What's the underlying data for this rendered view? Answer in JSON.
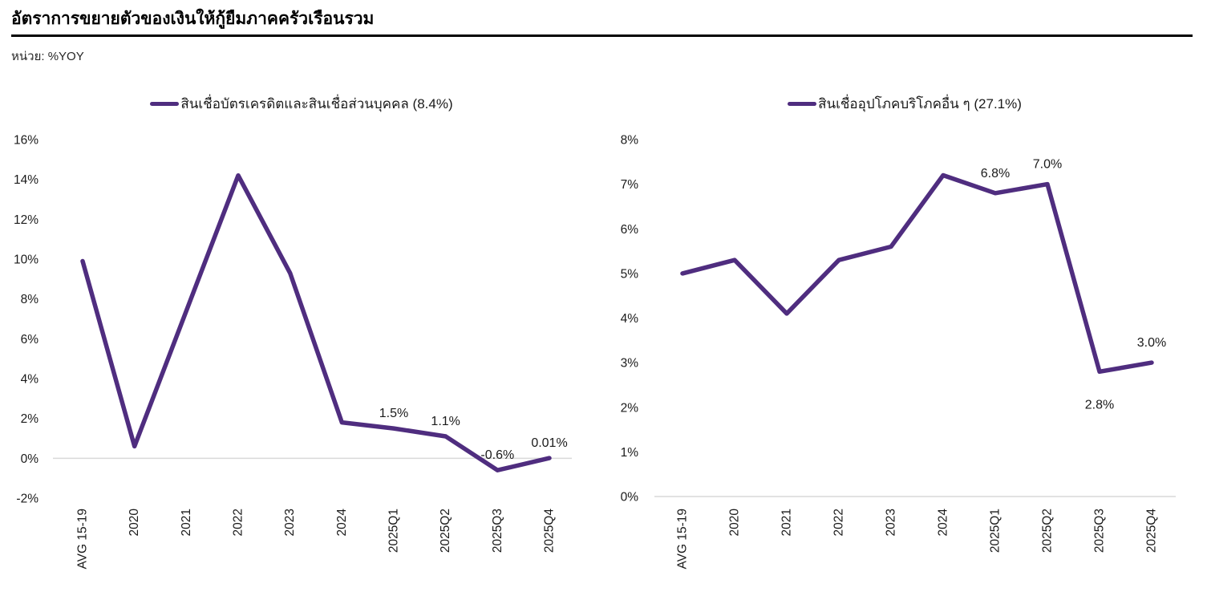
{
  "page": {
    "title": "อัตราการขยายตัวของเงินให้กู้ยืมภาคครัวเรือนรวม",
    "unit_label": "หน่วย: %YOY"
  },
  "colors": {
    "line": "#4F2D7F",
    "zero_axis": "#D9D9D9",
    "divider": "#000000",
    "text": "#1a1a1a"
  },
  "chart_data": [
    {
      "type": "line",
      "legend": "สินเชื่อบัตรเครดิตและสินเชื่อส่วนบุคคล (8.4%)",
      "categories": [
        "AVG 15-19",
        "2020",
        "2021",
        "2022",
        "2023",
        "2024",
        "2025Q1",
        "2025Q2",
        "2025Q3",
        "2025Q4"
      ],
      "values": [
        9.9,
        0.6,
        7.4,
        14.2,
        9.3,
        1.8,
        1.5,
        1.1,
        -0.6,
        0.01
      ],
      "point_labels": [
        {
          "index": 6,
          "text": "1.5%"
        },
        {
          "index": 7,
          "text": "1.1%"
        },
        {
          "index": 8,
          "text": "-0.6%"
        },
        {
          "index": 9,
          "text": "0.01%"
        }
      ],
      "ylim": [
        -2,
        16
      ],
      "ytick_step": 2,
      "ytick_suffix": "%",
      "grid": "zero-line-only",
      "legend_position": "top-center",
      "line_color": "#4F2D7F"
    },
    {
      "type": "line",
      "legend": "สินเชื่ออุปโภคบริโภคอื่น ๆ (27.1%)",
      "categories": [
        "AVG 15-19",
        "2020",
        "2021",
        "2022",
        "2023",
        "2024",
        "2025Q1",
        "2025Q2",
        "2025Q3",
        "2025Q4"
      ],
      "values": [
        5.0,
        5.3,
        4.1,
        5.3,
        5.6,
        7.2,
        6.8,
        7.0,
        2.8,
        3.0
      ],
      "point_labels": [
        {
          "index": 6,
          "text": "6.8%"
        },
        {
          "index": 7,
          "text": "7.0%"
        },
        {
          "index": 8,
          "text": "2.8%",
          "position": "below"
        },
        {
          "index": 9,
          "text": "3.0%"
        }
      ],
      "ylim": [
        0,
        8
      ],
      "ytick_step": 1,
      "ytick_suffix": "%",
      "grid": "zero-line-only",
      "legend_position": "top-center",
      "line_color": "#4F2D7F"
    }
  ]
}
